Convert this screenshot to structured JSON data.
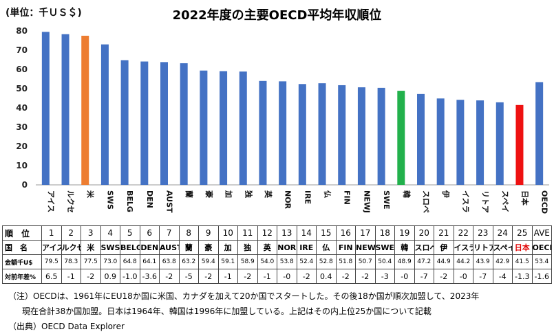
{
  "unit": "(単位：千ＵＳ＄)",
  "chart_data": {
    "type": "bar",
    "title": "2022年度の主要OECD平均年収順位",
    "ylim": [
      0,
      80
    ],
    "yticks": [
      0,
      10,
      20,
      30,
      40,
      50,
      60,
      70,
      80
    ],
    "grid": false,
    "legend": "none",
    "categories": [
      "アイス",
      "ルクセ",
      "米",
      "SWS",
      "BELG",
      "DEN",
      "AUST",
      "蘭",
      "豪",
      "加",
      "独",
      "英",
      "NOR",
      "IRE",
      "仏",
      "FIN",
      "NEWJ",
      "SWE",
      "韓",
      "スロベ",
      "伊",
      "イスラ",
      "リトア",
      "スペイ",
      "日本",
      "OECD"
    ],
    "values": [
      79.5,
      78.3,
      77.5,
      73.0,
      64.8,
      64.1,
      63.8,
      63.2,
      59.4,
      59.1,
      58.9,
      54.0,
      53.8,
      52.4,
      52.8,
      51.8,
      50.7,
      50.4,
      48.9,
      47.2,
      44.9,
      44.2,
      43.9,
      42.9,
      41.5,
      53.4
    ],
    "colors": [
      "#4472c4",
      "#4472c4",
      "#ed7d31",
      "#4472c4",
      "#4472c4",
      "#4472c4",
      "#4472c4",
      "#4472c4",
      "#4472c4",
      "#4472c4",
      "#4472c4",
      "#4472c4",
      "#4472c4",
      "#4472c4",
      "#4472c4",
      "#4472c4",
      "#4472c4",
      "#4472c4",
      "#22b14c",
      "#4472c4",
      "#4472c4",
      "#4472c4",
      "#4472c4",
      "#4472c4",
      "#ee1111",
      "#4472c4"
    ]
  },
  "table": {
    "row_labels": [
      "順　位",
      "国　名",
      "金額千U$",
      "対前年差%"
    ],
    "ranks": [
      "1",
      "2",
      "3",
      "4",
      "5",
      "6",
      "7",
      "8",
      "9",
      "10",
      "11",
      "12",
      "13",
      "14",
      "15",
      "16",
      "17",
      "18",
      "19",
      "20",
      "21",
      "22",
      "23",
      "24",
      "25",
      "AVE"
    ],
    "names": [
      "アイス",
      "ルクセ",
      "米",
      "SWS",
      "BELG",
      "DEN",
      "AUST",
      "蘭",
      "豪",
      "加",
      "独",
      "英",
      "NOR",
      "IRE",
      "仏",
      "FIN",
      "NEWJ",
      "SWE",
      "韓",
      "スロベ",
      "伊",
      "イスラ",
      "リトア",
      "スペイ",
      "日本",
      "OECD"
    ],
    "amounts": [
      "79.5",
      "78.3",
      "77.5",
      "73.0",
      "64.8",
      "64.1",
      "63.8",
      "63.2",
      "59.4",
      "59.1",
      "58.9",
      "54.0",
      "53.8",
      "52.4",
      "52.8",
      "51.8",
      "50.7",
      "50.4",
      "48.9",
      "47.2",
      "44.9",
      "44.2",
      "43.9",
      "42.9",
      "41.5",
      "53.4"
    ],
    "changes": [
      "6.5",
      "-1",
      "-2",
      "0.9",
      "-1.0",
      "-3.6",
      "-2",
      "-5",
      "-2",
      "-1",
      "-2",
      "-1",
      "-0",
      "-2",
      "0.4",
      "-2",
      "-2",
      "-3",
      "-0",
      "-7",
      "-2",
      "-0",
      "-7",
      "-4",
      "-1.3",
      "-1.6"
    ]
  },
  "notes": [
    "（注）OECDは、1961年にEU18か国に米国、カナダを加えて20か国でスタートした。その後18か国が順次加盟して、2023年",
    "現在合計38か国加盟。日本は1964年、韓国は1996年に加盟している。上記はその内上位25か国について記載",
    "（出典）OECD Data Explorer"
  ]
}
